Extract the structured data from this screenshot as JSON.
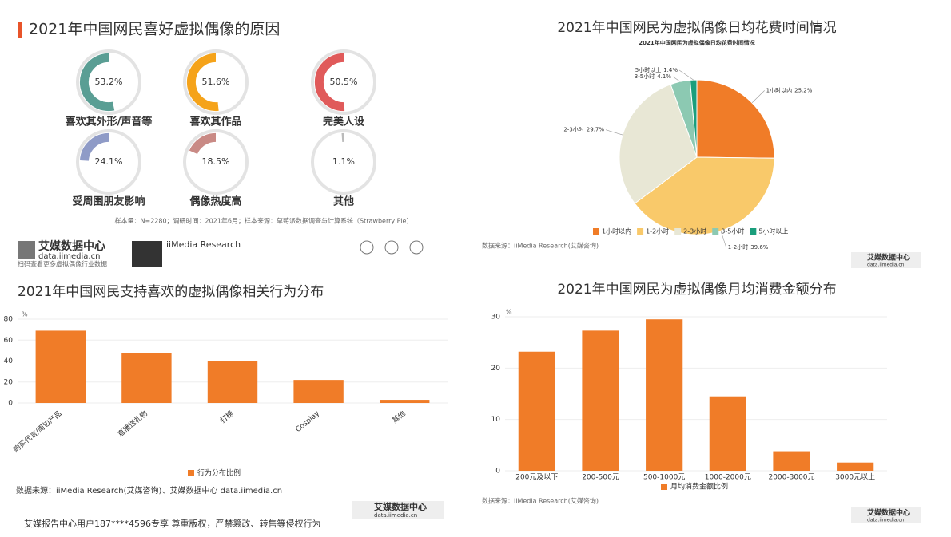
{
  "branding": {
    "logo": "艾媒数据中心",
    "site": "data.iimedia.cn",
    "qr_caption": "扫码查看更多虚拟偶像行业数据",
    "research": "iiMedia Research"
  },
  "watermark": "艾媒报告中心用户187****4596专享 尊重版权，严禁篡改、转售等侵权行为",
  "chart_data": [
    {
      "type": "donut",
      "title": "2021年中国网民喜好虚拟偶像的原因",
      "categories": [
        "喜欢其外形/声音等",
        "喜欢其作品",
        "完美人设",
        "受周围朋友影响",
        "偶像热度高",
        "其他"
      ],
      "values": [
        53.2,
        51.6,
        50.5,
        24.1,
        18.5,
        1.1
      ],
      "value_labels": [
        "53.2%",
        "51.6%",
        "50.5%",
        "24.1%",
        "18.5%",
        "1.1%"
      ],
      "colors": [
        "#5a9e94",
        "#f5a31a",
        "#e05a5a",
        "#8f9bc7",
        "#c98a85",
        "#bbbbbb"
      ],
      "note": "样本量：N=2280；调研时间：2021年6月；样本来源：草莓派数据调查与计算系统（Strawberry Pie）"
    },
    {
      "type": "pie",
      "title": "2021年中国网民为虚拟偶像日均花费时间情况",
      "subtitle": "2021年中国网民为虚拟偶像日均花费时间情况",
      "categories": [
        "1小时以内",
        "1-2小时",
        "2-3小时",
        "3-5小时",
        "5小时以上"
      ],
      "values": [
        25.2,
        39.6,
        29.7,
        4.1,
        1.4
      ],
      "value_labels": [
        "25.2%",
        "39.6%",
        "29.7%",
        "4.1%",
        "1.4%"
      ],
      "colors": [
        "#f07c28",
        "#f9c96a",
        "#e8e7d5",
        "#8cc9b2",
        "#1a9e7c"
      ],
      "source": "数据来源：iiMedia Research(艾媒咨询)"
    },
    {
      "type": "bar",
      "title": "2021年中国网民支持喜欢的虚拟偶像相关行为分布",
      "y_label": "%",
      "categories": [
        "购买代言/周边产品",
        "直播送礼物",
        "打榜",
        "Cosplay",
        "其他"
      ],
      "series": [
        {
          "name": "行为分布比例",
          "color": "#f07c28",
          "values": [
            69,
            48,
            40,
            22,
            3
          ]
        }
      ],
      "ylim": [
        0,
        80
      ],
      "yticks": [
        0,
        20,
        40,
        60,
        80
      ],
      "source": "数据来源：iiMedia Research(艾媒咨询)、艾媒数据中心 data.iimedia.cn"
    },
    {
      "type": "bar",
      "title": "2021年中国网民为虚拟偶像月均消费金额分布",
      "y_label": "%",
      "categories": [
        "200元及以下",
        "200-500元",
        "500-1000元",
        "1000-2000元",
        "2000-3000元",
        "3000元以上"
      ],
      "series": [
        {
          "name": "月均消费金额比例",
          "color": "#f07c28",
          "values": [
            23.2,
            27.3,
            29.5,
            14.5,
            3.8,
            1.6
          ]
        }
      ],
      "ylim": [
        0,
        30
      ],
      "yticks": [
        0,
        10,
        20,
        30
      ],
      "source": "数据来源：iiMedia Research(艾媒咨询)"
    }
  ]
}
